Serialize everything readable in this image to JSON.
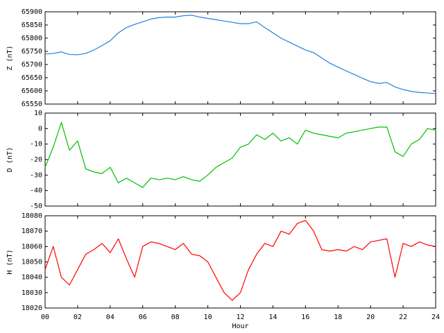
{
  "chart_data": [
    {
      "type": "line",
      "ylabel": "Z (nT)",
      "xlim": [
        0,
        24
      ],
      "ylim": [
        65550,
        65900
      ],
      "yticks": [
        65550,
        65600,
        65650,
        65700,
        65750,
        65800,
        65850,
        65900
      ],
      "x": [
        0,
        0.5,
        1,
        1.5,
        2,
        2.5,
        3,
        3.5,
        4,
        4.5,
        5,
        5.5,
        6,
        6.5,
        7,
        7.5,
        8,
        8.5,
        9,
        9.5,
        10,
        10.5,
        11,
        11.5,
        12,
        12.5,
        13,
        13.5,
        14,
        14.5,
        15,
        15.5,
        16,
        16.5,
        17,
        17.5,
        18,
        18.5,
        19,
        19.5,
        20,
        20.5,
        21,
        21.5,
        22,
        22.5,
        23,
        23.5,
        24
      ],
      "series": [
        {
          "name": "Z",
          "color": "#1e7fe0",
          "values": [
            65740,
            65742,
            65748,
            65738,
            65737,
            65742,
            65755,
            65772,
            65790,
            65820,
            65840,
            65852,
            65862,
            65872,
            65878,
            65880,
            65880,
            65885,
            65887,
            65880,
            65875,
            65870,
            65865,
            65860,
            65855,
            65855,
            65862,
            65840,
            65820,
            65800,
            65785,
            65770,
            65755,
            65745,
            65725,
            65705,
            65690,
            65676,
            65662,
            65648,
            65635,
            65628,
            65632,
            65615,
            65605,
            65598,
            65594,
            65592,
            65590
          ]
        }
      ]
    },
    {
      "type": "line",
      "ylabel": "D (nT)",
      "xlim": [
        0,
        24
      ],
      "ylim": [
        -50,
        10
      ],
      "yticks": [
        -50,
        -40,
        -30,
        -20,
        -10,
        0,
        10
      ],
      "x": [
        0,
        0.5,
        1,
        1.5,
        2,
        2.5,
        3,
        3.5,
        4,
        4.5,
        5,
        5.5,
        6,
        6.5,
        7,
        7.5,
        8,
        8.5,
        9,
        9.5,
        10,
        10.5,
        11,
        11.5,
        12,
        12.5,
        13,
        13.5,
        14,
        14.5,
        15,
        15.5,
        16,
        16.5,
        17,
        17.5,
        18,
        18.5,
        19,
        19.5,
        20,
        20.5,
        21,
        21.5,
        22,
        22.5,
        23,
        23.5,
        24
      ],
      "series": [
        {
          "name": "D",
          "color": "#00c000",
          "values": [
            -25,
            -12,
            4,
            -14,
            -8,
            -26,
            -28,
            -29,
            -25,
            -35,
            -32,
            -35,
            -38,
            -32,
            -33,
            -32,
            -33,
            -31,
            -33,
            -34,
            -30,
            -25,
            -22,
            -19,
            -12,
            -10,
            -4,
            -7,
            -3,
            -8,
            -6,
            -10,
            -1,
            -3,
            -4,
            -5,
            -6,
            -3,
            -2,
            -1,
            0,
            1,
            1,
            -15,
            -18,
            -10,
            -7,
            0,
            -1
          ]
        }
      ]
    },
    {
      "type": "line",
      "ylabel": "H (nT)",
      "xlabel": "Hour",
      "xlim": [
        0,
        24
      ],
      "ylim": [
        18020,
        18080
      ],
      "yticks": [
        18020,
        18030,
        18040,
        18050,
        18060,
        18070,
        18080
      ],
      "xticks": [
        {
          "value": 0,
          "label": "00"
        },
        {
          "value": 2,
          "label": "02"
        },
        {
          "value": 4,
          "label": "04"
        },
        {
          "value": 6,
          "label": "06"
        },
        {
          "value": 8,
          "label": "08"
        },
        {
          "value": 10,
          "label": "10"
        },
        {
          "value": 12,
          "label": "12"
        },
        {
          "value": 14,
          "label": "14"
        },
        {
          "value": 16,
          "label": "16"
        },
        {
          "value": 18,
          "label": "18"
        },
        {
          "value": 20,
          "label": "20"
        },
        {
          "value": 22,
          "label": "22"
        },
        {
          "value": 24,
          "label": "24"
        }
      ],
      "x": [
        0,
        0.5,
        1,
        1.5,
        2,
        2.5,
        3,
        3.5,
        4,
        4.5,
        5,
        5.5,
        6,
        6.5,
        7,
        7.5,
        8,
        8.5,
        9,
        9.5,
        10,
        10.5,
        11,
        11.5,
        12,
        12.5,
        13,
        13.5,
        14,
        14.5,
        15,
        15.5,
        16,
        16.5,
        17,
        17.5,
        18,
        18.5,
        19,
        19.5,
        20,
        20.5,
        21,
        21.5,
        22,
        22.5,
        23,
        23.5,
        24
      ],
      "series": [
        {
          "name": "H",
          "color": "#ff0000",
          "values": [
            18045,
            18060,
            18040,
            18035,
            18045,
            18055,
            18058,
            18062,
            18056,
            18065,
            18052,
            18040,
            18060,
            18063,
            18062,
            18060,
            18058,
            18062,
            18055,
            18054,
            18050,
            18040,
            18030,
            18025,
            18030,
            18045,
            18055,
            18062,
            18060,
            18070,
            18068,
            18075,
            18077,
            18070,
            18058,
            18057,
            18058,
            18057,
            18060,
            18058,
            18063,
            18064,
            18065,
            18040,
            18062,
            18060,
            18063,
            18061,
            18060
          ]
        }
      ]
    }
  ]
}
